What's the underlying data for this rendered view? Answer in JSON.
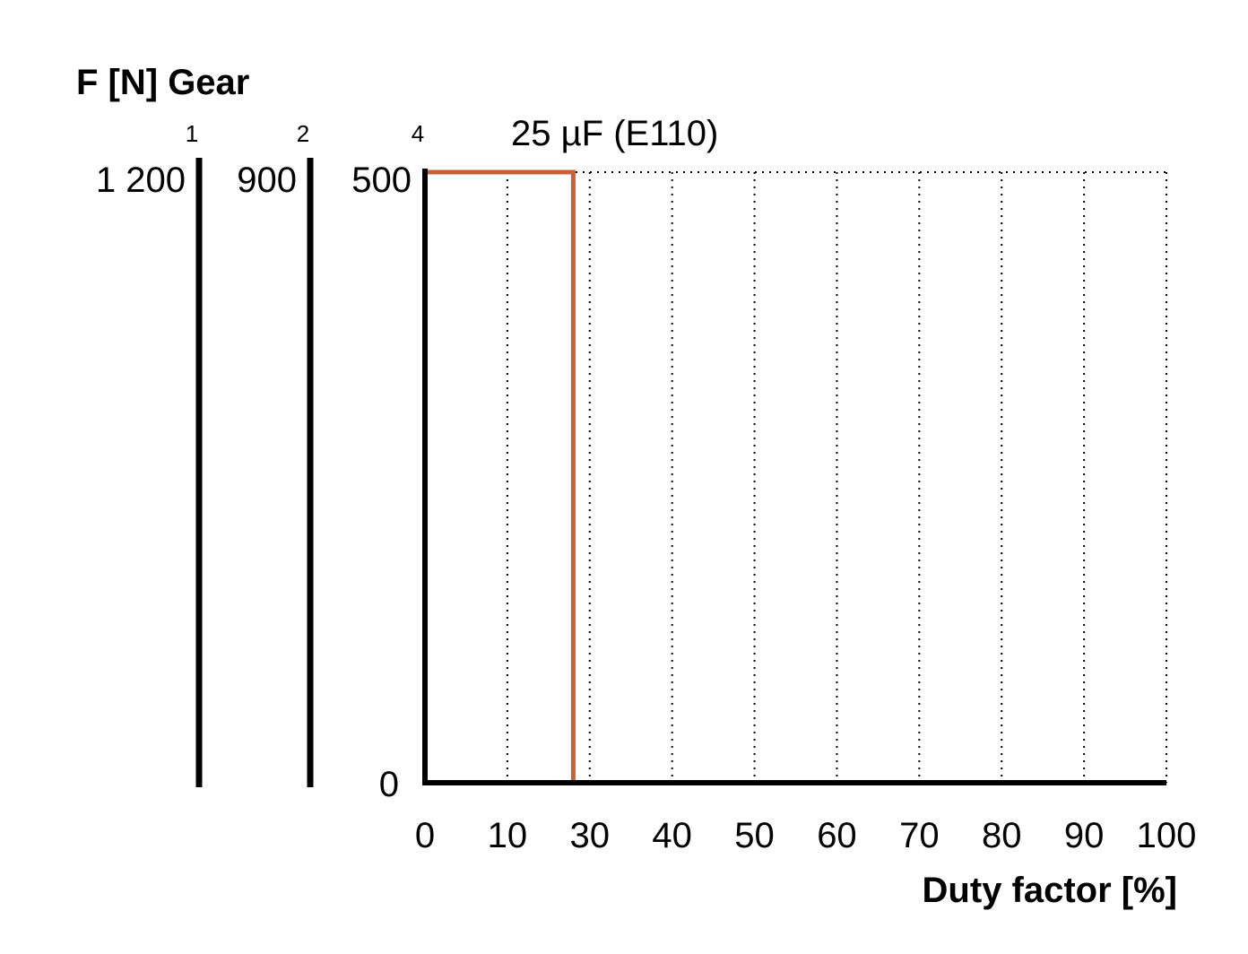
{
  "chart_data": {
    "type": "line",
    "title": "F [N] Gear",
    "xlabel": "Duty factor [%]",
    "ylabel": "",
    "x_ticks": [
      "0",
      "10",
      "30",
      "40",
      "50",
      "60",
      "70",
      "80",
      "90",
      "100"
    ],
    "y_ticks": [
      "0",
      "500"
    ],
    "xlim": [
      0,
      100
    ],
    "ylim": [
      0,
      500
    ],
    "grid": "vertical dotted",
    "gear_axes": [
      {
        "gear": "1",
        "max_force": "1 200"
      },
      {
        "gear": "2",
        "max_force": "900"
      },
      {
        "gear": "4",
        "max_force": "500"
      }
    ],
    "series": [
      {
        "name": "25 µF (E110)",
        "color": "#C8603A",
        "x": [
          0,
          20,
          20
        ],
        "y": [
          500,
          500,
          0
        ]
      }
    ]
  }
}
